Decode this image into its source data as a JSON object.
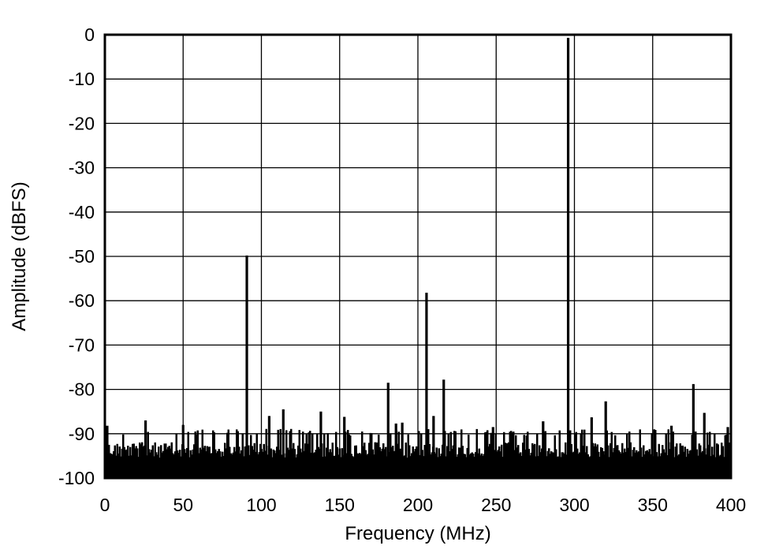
{
  "chart_data": {
    "type": "line",
    "title": "",
    "xlabel": "Frequency (MHz)",
    "ylabel": "Amplitude (dBFS)",
    "xlim": [
      0,
      400
    ],
    "ylim": [
      -100,
      0
    ],
    "xticks": [
      0,
      50,
      100,
      150,
      200,
      250,
      300,
      350,
      400
    ],
    "yticks": [
      0,
      -10,
      -20,
      -30,
      -40,
      -50,
      -60,
      -70,
      -80,
      -90,
      -100
    ],
    "grid": true,
    "legend": "none",
    "line_color": "#000000",
    "noise_floor_dbfs": -92,
    "peaks": [
      {
        "x": 296,
        "y": -0.7
      },
      {
        "x": 90.7,
        "y": -49.8
      },
      {
        "x": 205.5,
        "y": -58.2
      },
      {
        "x": 181,
        "y": -78.5
      },
      {
        "x": 216.5,
        "y": -77.8
      },
      {
        "x": 320,
        "y": -82.7
      },
      {
        "x": 376,
        "y": -78.8
      },
      {
        "x": 114,
        "y": -84.5
      },
      {
        "x": 138,
        "y": -85
      },
      {
        "x": 383,
        "y": -85.3
      },
      {
        "x": 105,
        "y": -86
      },
      {
        "x": 153,
        "y": -86.2
      },
      {
        "x": 210,
        "y": -86
      },
      {
        "x": 311,
        "y": -86.3
      },
      {
        "x": 26,
        "y": -87
      },
      {
        "x": 186,
        "y": -87.7
      },
      {
        "x": 190,
        "y": -87.5
      },
      {
        "x": 50,
        "y": -88
      },
      {
        "x": 1.5,
        "y": -88.2
      },
      {
        "x": 248,
        "y": -88.5
      },
      {
        "x": 362,
        "y": -88.2
      },
      {
        "x": 398,
        "y": -88.5
      },
      {
        "x": 280,
        "y": -87.2
      }
    ]
  }
}
